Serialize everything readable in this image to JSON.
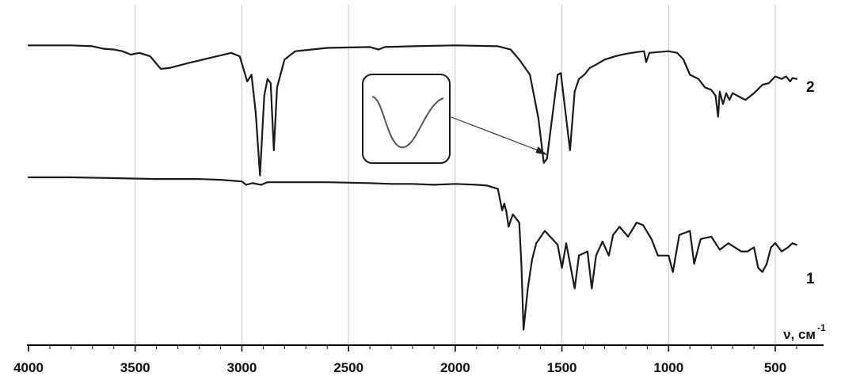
{
  "chart_data": {
    "type": "line",
    "title": "",
    "xlabel": "ν, см",
    "xlabel_sup": "-1",
    "ylabel": "",
    "xlim": [
      4000,
      400
    ],
    "x_reversed": true,
    "grid": "vertical",
    "x_ticks": [
      4000,
      3500,
      3000,
      2500,
      2000,
      1500,
      1000,
      500
    ],
    "x_tick_labels": [
      "4000",
      "3500",
      "3000",
      "2500",
      "2000",
      "1500",
      "1000",
      "500"
    ],
    "series": [
      {
        "name": "2",
        "points": [
          [
            4000,
            0.05
          ],
          [
            3800,
            0.05
          ],
          [
            3700,
            0.06
          ],
          [
            3650,
            0.09
          ],
          [
            3600,
            0.1
          ],
          [
            3560,
            0.12
          ],
          [
            3520,
            0.16
          ],
          [
            3480,
            0.14
          ],
          [
            3430,
            0.18
          ],
          [
            3380,
            0.33
          ],
          [
            3340,
            0.32
          ],
          [
            3250,
            0.26
          ],
          [
            3150,
            0.2
          ],
          [
            3050,
            0.14
          ],
          [
            3010,
            0.18
          ],
          [
            2975,
            0.48
          ],
          [
            2955,
            0.4
          ],
          [
            2935,
            0.85
          ],
          [
            2915,
            1.6
          ],
          [
            2895,
            0.65
          ],
          [
            2880,
            0.45
          ],
          [
            2865,
            0.5
          ],
          [
            2850,
            1.3
          ],
          [
            2835,
            0.55
          ],
          [
            2800,
            0.22
          ],
          [
            2750,
            0.12
          ],
          [
            2600,
            0.08
          ],
          [
            2400,
            0.07
          ],
          [
            2360,
            0.1
          ],
          [
            2330,
            0.07
          ],
          [
            2200,
            0.06
          ],
          [
            2000,
            0.05
          ],
          [
            1800,
            0.06
          ],
          [
            1740,
            0.1
          ],
          [
            1700,
            0.22
          ],
          [
            1650,
            0.4
          ],
          [
            1610,
            0.92
          ],
          [
            1585,
            1.45
          ],
          [
            1570,
            1.4
          ],
          [
            1545,
            0.9
          ],
          [
            1520,
            0.4
          ],
          [
            1505,
            0.38
          ],
          [
            1480,
            0.92
          ],
          [
            1462,
            1.3
          ],
          [
            1440,
            0.6
          ],
          [
            1420,
            0.45
          ],
          [
            1395,
            0.4
          ],
          [
            1370,
            0.32
          ],
          [
            1340,
            0.28
          ],
          [
            1300,
            0.22
          ],
          [
            1250,
            0.18
          ],
          [
            1200,
            0.15
          ],
          [
            1150,
            0.13
          ],
          [
            1115,
            0.12
          ],
          [
            1105,
            0.25
          ],
          [
            1090,
            0.14
          ],
          [
            1050,
            0.13
          ],
          [
            1000,
            0.12
          ],
          [
            960,
            0.14
          ],
          [
            930,
            0.22
          ],
          [
            900,
            0.4
          ],
          [
            860,
            0.45
          ],
          [
            830,
            0.55
          ],
          [
            800,
            0.58
          ],
          [
            780,
            0.65
          ],
          [
            768,
            0.9
          ],
          [
            760,
            0.6
          ],
          [
            745,
            0.75
          ],
          [
            730,
            0.62
          ],
          [
            715,
            0.7
          ],
          [
            700,
            0.62
          ],
          [
            670,
            0.66
          ],
          [
            640,
            0.7
          ],
          [
            600,
            0.62
          ],
          [
            560,
            0.52
          ],
          [
            530,
            0.5
          ],
          [
            500,
            0.42
          ],
          [
            470,
            0.45
          ],
          [
            450,
            0.42
          ],
          [
            430,
            0.48
          ],
          [
            420,
            0.44
          ],
          [
            400,
            0.45
          ]
        ]
      },
      {
        "name": "1",
        "points": [
          [
            4000,
            0.0
          ],
          [
            3800,
            0.0
          ],
          [
            3600,
            0.01
          ],
          [
            3400,
            0.02
          ],
          [
            3200,
            0.02
          ],
          [
            3100,
            0.03
          ],
          [
            3000,
            0.05
          ],
          [
            2980,
            0.09
          ],
          [
            2950,
            0.07
          ],
          [
            2910,
            0.09
          ],
          [
            2880,
            0.06
          ],
          [
            2800,
            0.06
          ],
          [
            2600,
            0.06
          ],
          [
            2400,
            0.07
          ],
          [
            2300,
            0.08
          ],
          [
            2200,
            0.08
          ],
          [
            2100,
            0.09
          ],
          [
            2000,
            0.08
          ],
          [
            1900,
            0.09
          ],
          [
            1850,
            0.1
          ],
          [
            1800,
            0.14
          ],
          [
            1780,
            0.4
          ],
          [
            1770,
            0.32
          ],
          [
            1760,
            0.42
          ],
          [
            1750,
            0.6
          ],
          [
            1730,
            0.45
          ],
          [
            1700,
            0.55
          ],
          [
            1690,
            1.05
          ],
          [
            1680,
            1.85
          ],
          [
            1660,
            1.35
          ],
          [
            1640,
            1.0
          ],
          [
            1620,
            0.8
          ],
          [
            1580,
            0.65
          ],
          [
            1520,
            0.82
          ],
          [
            1500,
            1.1
          ],
          [
            1480,
            0.8
          ],
          [
            1440,
            1.35
          ],
          [
            1420,
            0.95
          ],
          [
            1380,
            0.9
          ],
          [
            1360,
            1.35
          ],
          [
            1340,
            0.95
          ],
          [
            1310,
            0.78
          ],
          [
            1280,
            0.95
          ],
          [
            1260,
            0.7
          ],
          [
            1230,
            0.6
          ],
          [
            1190,
            0.72
          ],
          [
            1150,
            0.55
          ],
          [
            1120,
            0.58
          ],
          [
            1080,
            0.75
          ],
          [
            1050,
            0.95
          ],
          [
            1000,
            0.95
          ],
          [
            980,
            1.15
          ],
          [
            950,
            0.7
          ],
          [
            900,
            0.65
          ],
          [
            880,
            1.05
          ],
          [
            850,
            0.75
          ],
          [
            800,
            0.72
          ],
          [
            760,
            0.88
          ],
          [
            720,
            0.8
          ],
          [
            690,
            0.85
          ],
          [
            660,
            0.9
          ],
          [
            630,
            0.9
          ],
          [
            600,
            0.85
          ],
          [
            580,
            1.1
          ],
          [
            560,
            1.15
          ],
          [
            540,
            1.05
          ],
          [
            520,
            0.85
          ],
          [
            500,
            0.8
          ],
          [
            470,
            0.9
          ],
          [
            440,
            0.85
          ],
          [
            420,
            0.8
          ],
          [
            400,
            0.82
          ]
        ]
      }
    ],
    "inset": {
      "depicts": "enlarged view of the band of spectrum 2 near 1560 cm-1",
      "target_x": 1560
    }
  }
}
